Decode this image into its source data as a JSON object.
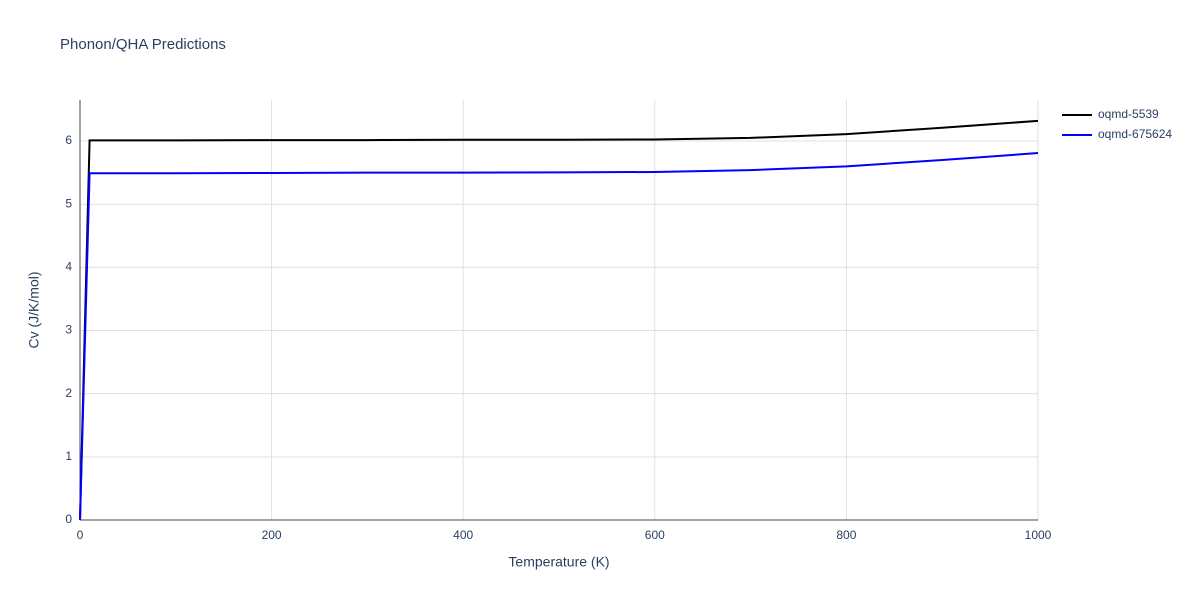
{
  "chart_data": {
    "type": "line",
    "title": "Phonon/QHA Predictions",
    "x_label": "Temperature (K)",
    "y_label": "Cv (J/K/mol)",
    "xlim": [
      0,
      1000
    ],
    "xticks": [
      0,
      200,
      400,
      600,
      800,
      1000
    ],
    "ylim": [
      0,
      6.65
    ],
    "yticks": [
      0,
      1,
      2,
      3,
      4,
      5,
      6
    ],
    "grid": true,
    "legend": "right",
    "series": [
      {
        "name": "oqmd-5539",
        "color": "#000000",
        "x": [
          0,
          10,
          100,
          200,
          300,
          400,
          500,
          600,
          700,
          800,
          900,
          1000
        ],
        "values": [
          0,
          6.01,
          6.01,
          6.015,
          6.015,
          6.02,
          6.02,
          6.025,
          6.05,
          6.11,
          6.21,
          6.32
        ]
      },
      {
        "name": "oqmd-675624",
        "color": "#0000ff",
        "x": [
          0,
          10,
          100,
          200,
          300,
          400,
          500,
          600,
          700,
          800,
          900,
          1000
        ],
        "values": [
          0,
          5.49,
          5.49,
          5.495,
          5.5,
          5.5,
          5.505,
          5.51,
          5.54,
          5.6,
          5.7,
          5.81
        ]
      }
    ]
  }
}
